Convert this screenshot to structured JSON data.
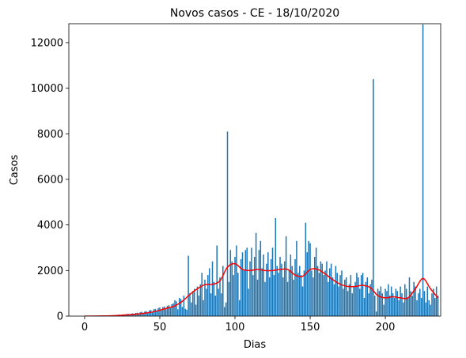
{
  "chart_data": {
    "type": "bar_line",
    "title": "Novos casos - CE - 18/10/2020",
    "xlabel": "Dias",
    "ylabel": "Casos",
    "xlim": [
      -10.5,
      236.8
    ],
    "ylim": [
      0,
      12830
    ],
    "xticks": [
      0,
      50,
      100,
      150,
      200
    ],
    "yticks": [
      0,
      2000,
      4000,
      6000,
      8000,
      10000,
      12000
    ],
    "grid": false,
    "bars": {
      "color": "#1f77b4",
      "x": [
        0,
        1,
        2,
        3,
        4,
        5,
        6,
        7,
        8,
        9,
        10,
        11,
        12,
        13,
        14,
        15,
        16,
        17,
        18,
        19,
        20,
        21,
        22,
        23,
        24,
        25,
        26,
        27,
        28,
        29,
        30,
        31,
        32,
        33,
        34,
        35,
        36,
        37,
        38,
        39,
        40,
        41,
        42,
        43,
        44,
        45,
        46,
        47,
        48,
        49,
        50,
        51,
        52,
        53,
        54,
        55,
        56,
        57,
        58,
        59,
        60,
        61,
        62,
        63,
        64,
        65,
        66,
        67,
        68,
        69,
        70,
        71,
        72,
        73,
        74,
        75,
        76,
        77,
        78,
        79,
        80,
        81,
        82,
        83,
        84,
        85,
        86,
        87,
        88,
        89,
        90,
        91,
        92,
        93,
        94,
        95,
        96,
        97,
        98,
        99,
        100,
        101,
        102,
        103,
        104,
        105,
        106,
        107,
        108,
        109,
        110,
        111,
        112,
        113,
        114,
        115,
        116,
        117,
        118,
        119,
        120,
        121,
        122,
        123,
        124,
        125,
        126,
        127,
        128,
        129,
        130,
        131,
        132,
        133,
        134,
        135,
        136,
        137,
        138,
        139,
        140,
        141,
        142,
        143,
        144,
        145,
        146,
        147,
        148,
        149,
        150,
        151,
        152,
        153,
        154,
        155,
        156,
        157,
        158,
        159,
        160,
        161,
        162,
        163,
        164,
        165,
        166,
        167,
        168,
        169,
        170,
        171,
        172,
        173,
        174,
        175,
        176,
        177,
        178,
        179,
        180,
        181,
        182,
        183,
        184,
        185,
        186,
        187,
        188,
        189,
        190,
        191,
        192,
        193,
        194,
        195,
        196,
        197,
        198,
        199,
        200,
        201,
        202,
        203,
        204,
        205,
        206,
        207,
        208,
        209,
        210,
        211,
        212,
        213,
        214,
        215,
        216,
        217,
        218,
        219,
        220,
        221,
        222,
        223,
        224,
        225,
        226,
        227,
        228,
        229,
        230,
        231,
        232,
        233,
        234,
        235
      ],
      "values": [
        0,
        0,
        0,
        1,
        2,
        3,
        5,
        8,
        5,
        10,
        12,
        15,
        10,
        20,
        25,
        18,
        30,
        28,
        35,
        40,
        25,
        45,
        50,
        60,
        40,
        70,
        80,
        65,
        90,
        100,
        80,
        110,
        120,
        95,
        140,
        150,
        100,
        170,
        190,
        130,
        200,
        220,
        150,
        250,
        270,
        180,
        300,
        320,
        210,
        350,
        380,
        250,
        400,
        420,
        300,
        450,
        480,
        350,
        520,
        560,
        700,
        650,
        300,
        800,
        750,
        400,
        900,
        320,
        280,
        2650,
        1000,
        600,
        1100,
        1200,
        500,
        1300,
        900,
        1400,
        1900,
        700,
        1600,
        1200,
        1800,
        2100,
        1000,
        2400,
        1500,
        900,
        3100,
        1200,
        1700,
        1000,
        2200,
        400,
        600,
        8100,
        1500,
        2900,
        2400,
        1800,
        2600,
        3100,
        1900,
        700,
        2500,
        2800,
        2000,
        2900,
        3000,
        1200,
        2400,
        3000,
        1800,
        2600,
        3650,
        1600,
        2900,
        3300,
        2100,
        2700,
        1500,
        2300,
        2800,
        1700,
        2500,
        3000,
        1800,
        4300,
        2200,
        1900,
        2600,
        2300,
        1700,
        2400,
        3500,
        1500,
        2000,
        2700,
        2200,
        1600,
        2500,
        3300,
        1900,
        2200,
        1800,
        1300,
        2000,
        4100,
        2800,
        3300,
        3200,
        2000,
        1700,
        2600,
        3000,
        2200,
        1900,
        2400,
        2300,
        1800,
        2000,
        2400,
        1500,
        2100,
        2300,
        1700,
        1400,
        2200,
        1900,
        1300,
        1800,
        2000,
        1200,
        1600,
        1700,
        1100,
        1400,
        1800,
        1000,
        1300,
        1500,
        1900,
        1700,
        1200,
        1800,
        1900,
        800,
        1500,
        1700,
        1000,
        1400,
        1600,
        10400,
        900,
        200,
        1200,
        1100,
        1300,
        1000,
        500,
        1200,
        1100,
        1400,
        900,
        1300,
        1000,
        800,
        1200,
        1100,
        700,
        1300,
        1000,
        600,
        1400,
        1200,
        800,
        1700,
        1100,
        900,
        1500,
        1300,
        700,
        1000,
        1200,
        800,
        12800,
        1100,
        600,
        1300,
        700,
        500,
        1000,
        1200,
        800,
        1300,
        900
      ]
    },
    "line": {
      "color": "#ff0000",
      "x": [
        0,
        5,
        10,
        15,
        20,
        25,
        30,
        35,
        40,
        45,
        50,
        55,
        60,
        65,
        70,
        75,
        80,
        85,
        90,
        95,
        100,
        105,
        110,
        115,
        120,
        125,
        130,
        135,
        140,
        145,
        150,
        155,
        160,
        165,
        170,
        175,
        180,
        185,
        190,
        195,
        200,
        205,
        210,
        215,
        220,
        225,
        230,
        235
      ],
      "values": [
        0,
        0,
        5,
        10,
        20,
        40,
        60,
        90,
        130,
        180,
        260,
        350,
        450,
        650,
        950,
        1200,
        1380,
        1400,
        1550,
        2150,
        2300,
        2050,
        2000,
        2050,
        2000,
        2000,
        2050,
        2050,
        1800,
        1750,
        2050,
        2050,
        1850,
        1600,
        1400,
        1300,
        1300,
        1350,
        1250,
        900,
        800,
        850,
        800,
        800,
        1200,
        1650,
        1200,
        800
      ]
    }
  }
}
